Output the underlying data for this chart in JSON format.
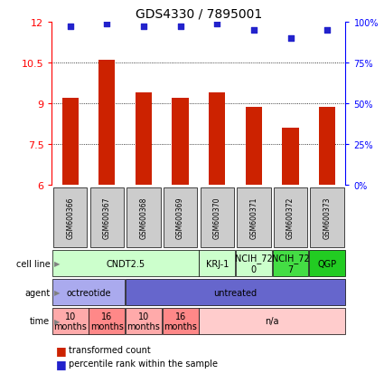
{
  "title": "GDS4330 / 7895001",
  "samples": [
    "GSM600366",
    "GSM600367",
    "GSM600368",
    "GSM600369",
    "GSM600370",
    "GSM600371",
    "GSM600372",
    "GSM600373"
  ],
  "bar_values": [
    9.2,
    10.6,
    9.4,
    9.2,
    9.4,
    8.85,
    8.1,
    8.85
  ],
  "percentile_values": [
    97,
    99,
    97,
    97,
    99,
    95,
    90,
    95
  ],
  "ylim_left": [
    6,
    12
  ],
  "ylim_right": [
    0,
    100
  ],
  "yticks_left": [
    6,
    7.5,
    9,
    10.5,
    12
  ],
  "yticks_right": [
    0,
    25,
    50,
    75,
    100
  ],
  "ytick_right_labels": [
    "0%",
    "25%",
    "50%",
    "75%",
    "100%"
  ],
  "bar_color": "#cc2200",
  "dot_color": "#2222cc",
  "cell_line_data": [
    {
      "label": "CNDT2.5",
      "span": [
        0,
        4
      ],
      "color": "#ccffcc"
    },
    {
      "label": "KRJ-1",
      "span": [
        4,
        5
      ],
      "color": "#ccffcc"
    },
    {
      "label": "NCIH_72\n0",
      "span": [
        5,
        6
      ],
      "color": "#ccffcc"
    },
    {
      "label": "NCIH_72\n7",
      "span": [
        6,
        7
      ],
      "color": "#44dd44"
    },
    {
      "label": "QGP",
      "span": [
        7,
        8
      ],
      "color": "#22cc22"
    }
  ],
  "agent_data": [
    {
      "label": "octreotide",
      "span": [
        0,
        2
      ],
      "color": "#aaaaee"
    },
    {
      "label": "untreated",
      "span": [
        2,
        8
      ],
      "color": "#6666cc"
    }
  ],
  "time_data": [
    {
      "label": "10\nmonths",
      "span": [
        0,
        1
      ],
      "color": "#ffaaaa"
    },
    {
      "label": "16\nmonths",
      "span": [
        1,
        2
      ],
      "color": "#ff8888"
    },
    {
      "label": "10\nmonths",
      "span": [
        2,
        3
      ],
      "color": "#ffaaaa"
    },
    {
      "label": "16\nmonths",
      "span": [
        3,
        4
      ],
      "color": "#ff8888"
    },
    {
      "label": "n/a",
      "span": [
        4,
        8
      ],
      "color": "#ffcccc"
    }
  ],
  "row_labels": [
    "cell line",
    "agent",
    "time"
  ],
  "legend_items": [
    {
      "label": "transformed count",
      "color": "#cc2200"
    },
    {
      "label": "percentile rank within the sample",
      "color": "#2222cc"
    }
  ]
}
